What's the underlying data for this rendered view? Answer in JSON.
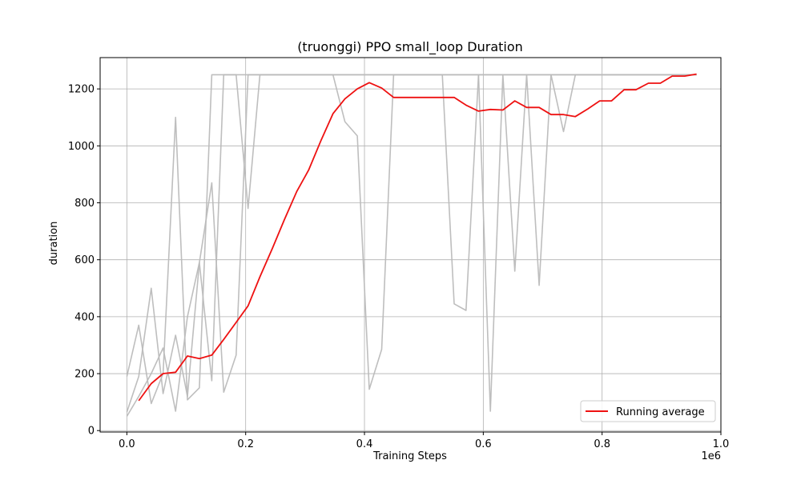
{
  "chart_data": {
    "type": "line",
    "title": "(truonggi) PPO small_loop Duration",
    "xlabel": "Training Steps",
    "ylabel": "duration",
    "x_offset_label": "1e6",
    "xlim": [
      -0.045,
      1.0
    ],
    "ylim": [
      -5,
      1310
    ],
    "xticks": [
      0.0,
      0.2,
      0.4,
      0.6,
      0.8,
      1.0
    ],
    "xtick_labels": [
      "0.0",
      "0.2",
      "0.4",
      "0.6",
      "0.8",
      "1.0"
    ],
    "yticks": [
      0,
      200,
      400,
      600,
      800,
      1000,
      1200
    ],
    "ytick_labels": [
      "0",
      "200",
      "400",
      "600",
      "800",
      "1000",
      "1200"
    ],
    "grid": true,
    "legend_position": "lower-right",
    "series": [
      {
        "style": "raw",
        "color": "#bbbbbb",
        "x": [
          0.0,
          0.02,
          0.041,
          0.061,
          0.082,
          0.102,
          0.122,
          0.143,
          0.163,
          0.184,
          0.204,
          0.224,
          0.245,
          0.265,
          0.286,
          0.306,
          0.327,
          0.347,
          0.367,
          0.388,
          0.408,
          0.429,
          0.449,
          0.469,
          0.49,
          0.51,
          0.531,
          0.551,
          0.571,
          0.592,
          0.612,
          0.633,
          0.653,
          0.673,
          0.694,
          0.714,
          0.735,
          0.755,
          0.776,
          0.796,
          0.816,
          0.837,
          0.857,
          0.878,
          0.898,
          0.918,
          0.939,
          0.959
        ],
        "y": [
          190,
          370,
          95,
          200,
          1100,
          108,
          150,
          1250,
          1250,
          1250,
          780,
          1250,
          1250,
          1250,
          1250,
          1250,
          1250,
          1250,
          1085,
          1035,
          145,
          285,
          1250,
          1250,
          1250,
          1250,
          1250,
          1250,
          1250,
          1250,
          68,
          1250,
          560,
          1250,
          510,
          1250,
          1050,
          1250,
          1250,
          1250,
          1250,
          1250,
          1250,
          1250,
          1250,
          1250,
          1250,
          1250
        ]
      },
      {
        "style": "raw",
        "color": "#bbbbbb",
        "x": [
          0.0,
          0.02,
          0.041,
          0.061,
          0.082,
          0.102,
          0.122,
          0.143,
          0.163,
          0.184,
          0.204,
          0.224,
          0.245,
          0.265,
          0.286,
          0.306,
          0.327,
          0.347,
          0.367,
          0.388,
          0.408,
          0.429,
          0.449,
          0.469,
          0.49,
          0.51,
          0.531,
          0.551,
          0.571,
          0.592,
          0.612,
          0.633,
          0.653,
          0.673,
          0.694,
          0.714,
          0.735,
          0.755,
          0.776,
          0.796,
          0.816,
          0.837,
          0.857,
          0.878,
          0.898,
          0.918,
          0.939,
          0.959
        ],
        "y": [
          65,
          190,
          500,
          130,
          335,
          120,
          590,
          175,
          1250,
          1250,
          1250,
          1250,
          1250,
          1250,
          1250,
          1250,
          1250,
          1250,
          1250,
          1250,
          1250,
          1250,
          1250,
          1250,
          1250,
          1250,
          1250,
          445,
          422,
          1250,
          1250,
          1250,
          1250,
          1250,
          1250,
          1250,
          1250,
          1250,
          1250,
          1250,
          1250,
          1250,
          1250,
          1250,
          1250,
          1250,
          1250,
          1250
        ]
      },
      {
        "style": "raw",
        "color": "#bbbbbb",
        "x": [
          0.0,
          0.02,
          0.041,
          0.061,
          0.082,
          0.102,
          0.122,
          0.143,
          0.163,
          0.184,
          0.204,
          0.224,
          0.245,
          0.265,
          0.286,
          0.306,
          0.327,
          0.347,
          0.367,
          0.388,
          0.408,
          0.429,
          0.449,
          0.469,
          0.49,
          0.51,
          0.531,
          0.551,
          0.571,
          0.592,
          0.612,
          0.633,
          0.653,
          0.673,
          0.694,
          0.714,
          0.735,
          0.755,
          0.776,
          0.796,
          0.816,
          0.837,
          0.857,
          0.878,
          0.898,
          0.918,
          0.939,
          0.959
        ],
        "y": [
          50,
          120,
          200,
          290,
          68,
          400,
          590,
          870,
          135,
          265,
          1250,
          1250,
          1250,
          1250,
          1250,
          1250,
          1250,
          1250,
          1250,
          1250,
          1250,
          1250,
          1250,
          1250,
          1250,
          1250,
          1250,
          1250,
          1250,
          1250,
          1250,
          1250,
          1250,
          1250,
          1250,
          1250,
          1250,
          1250,
          1250,
          1250,
          1250,
          1250,
          1250,
          1250,
          1250,
          1250,
          1250,
          1250
        ]
      },
      {
        "style": "average",
        "name": "Running average",
        "color": "#ee1111",
        "x": [
          0.02,
          0.041,
          0.061,
          0.082,
          0.102,
          0.122,
          0.143,
          0.163,
          0.184,
          0.204,
          0.224,
          0.245,
          0.265,
          0.286,
          0.306,
          0.327,
          0.347,
          0.367,
          0.388,
          0.408,
          0.429,
          0.449,
          0.469,
          0.49,
          0.51,
          0.531,
          0.551,
          0.571,
          0.592,
          0.612,
          0.633,
          0.653,
          0.673,
          0.694,
          0.714,
          0.735,
          0.755,
          0.776,
          0.796,
          0.816,
          0.837,
          0.857,
          0.878,
          0.898,
          0.918,
          0.939,
          0.959
        ],
        "y": [
          105,
          165,
          200,
          205,
          262,
          253,
          265,
          320,
          380,
          438,
          540,
          640,
          740,
          840,
          915,
          1020,
          1113,
          1165,
          1200,
          1222,
          1203,
          1170,
          1170,
          1170,
          1170,
          1170,
          1170,
          1143,
          1122,
          1128,
          1126,
          1158,
          1135,
          1135,
          1110,
          1110,
          1103,
          1130,
          1158,
          1158,
          1197,
          1197,
          1220,
          1220,
          1245,
          1245,
          1252
        ]
      }
    ]
  }
}
